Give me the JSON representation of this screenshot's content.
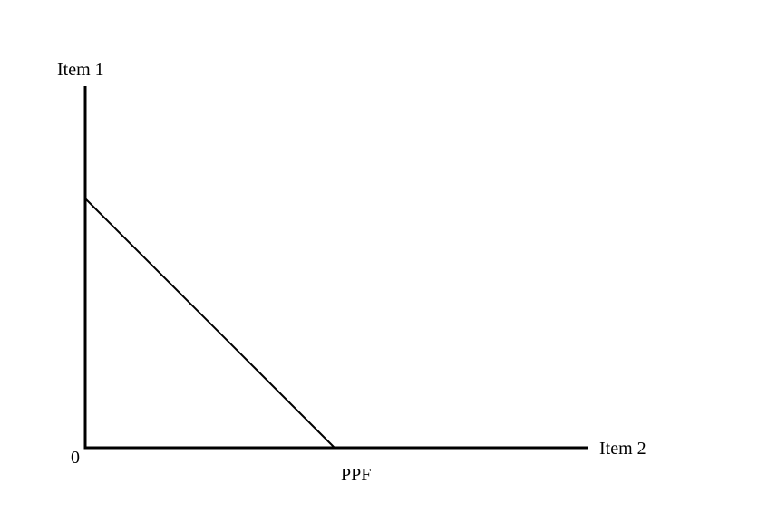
{
  "diagram": {
    "y_axis_label": "Item 1",
    "x_axis_label": "Item 2",
    "origin_label": "0",
    "curve_label": "PPF",
    "colors": {
      "line": "#000000",
      "background": "#ffffff"
    }
  }
}
